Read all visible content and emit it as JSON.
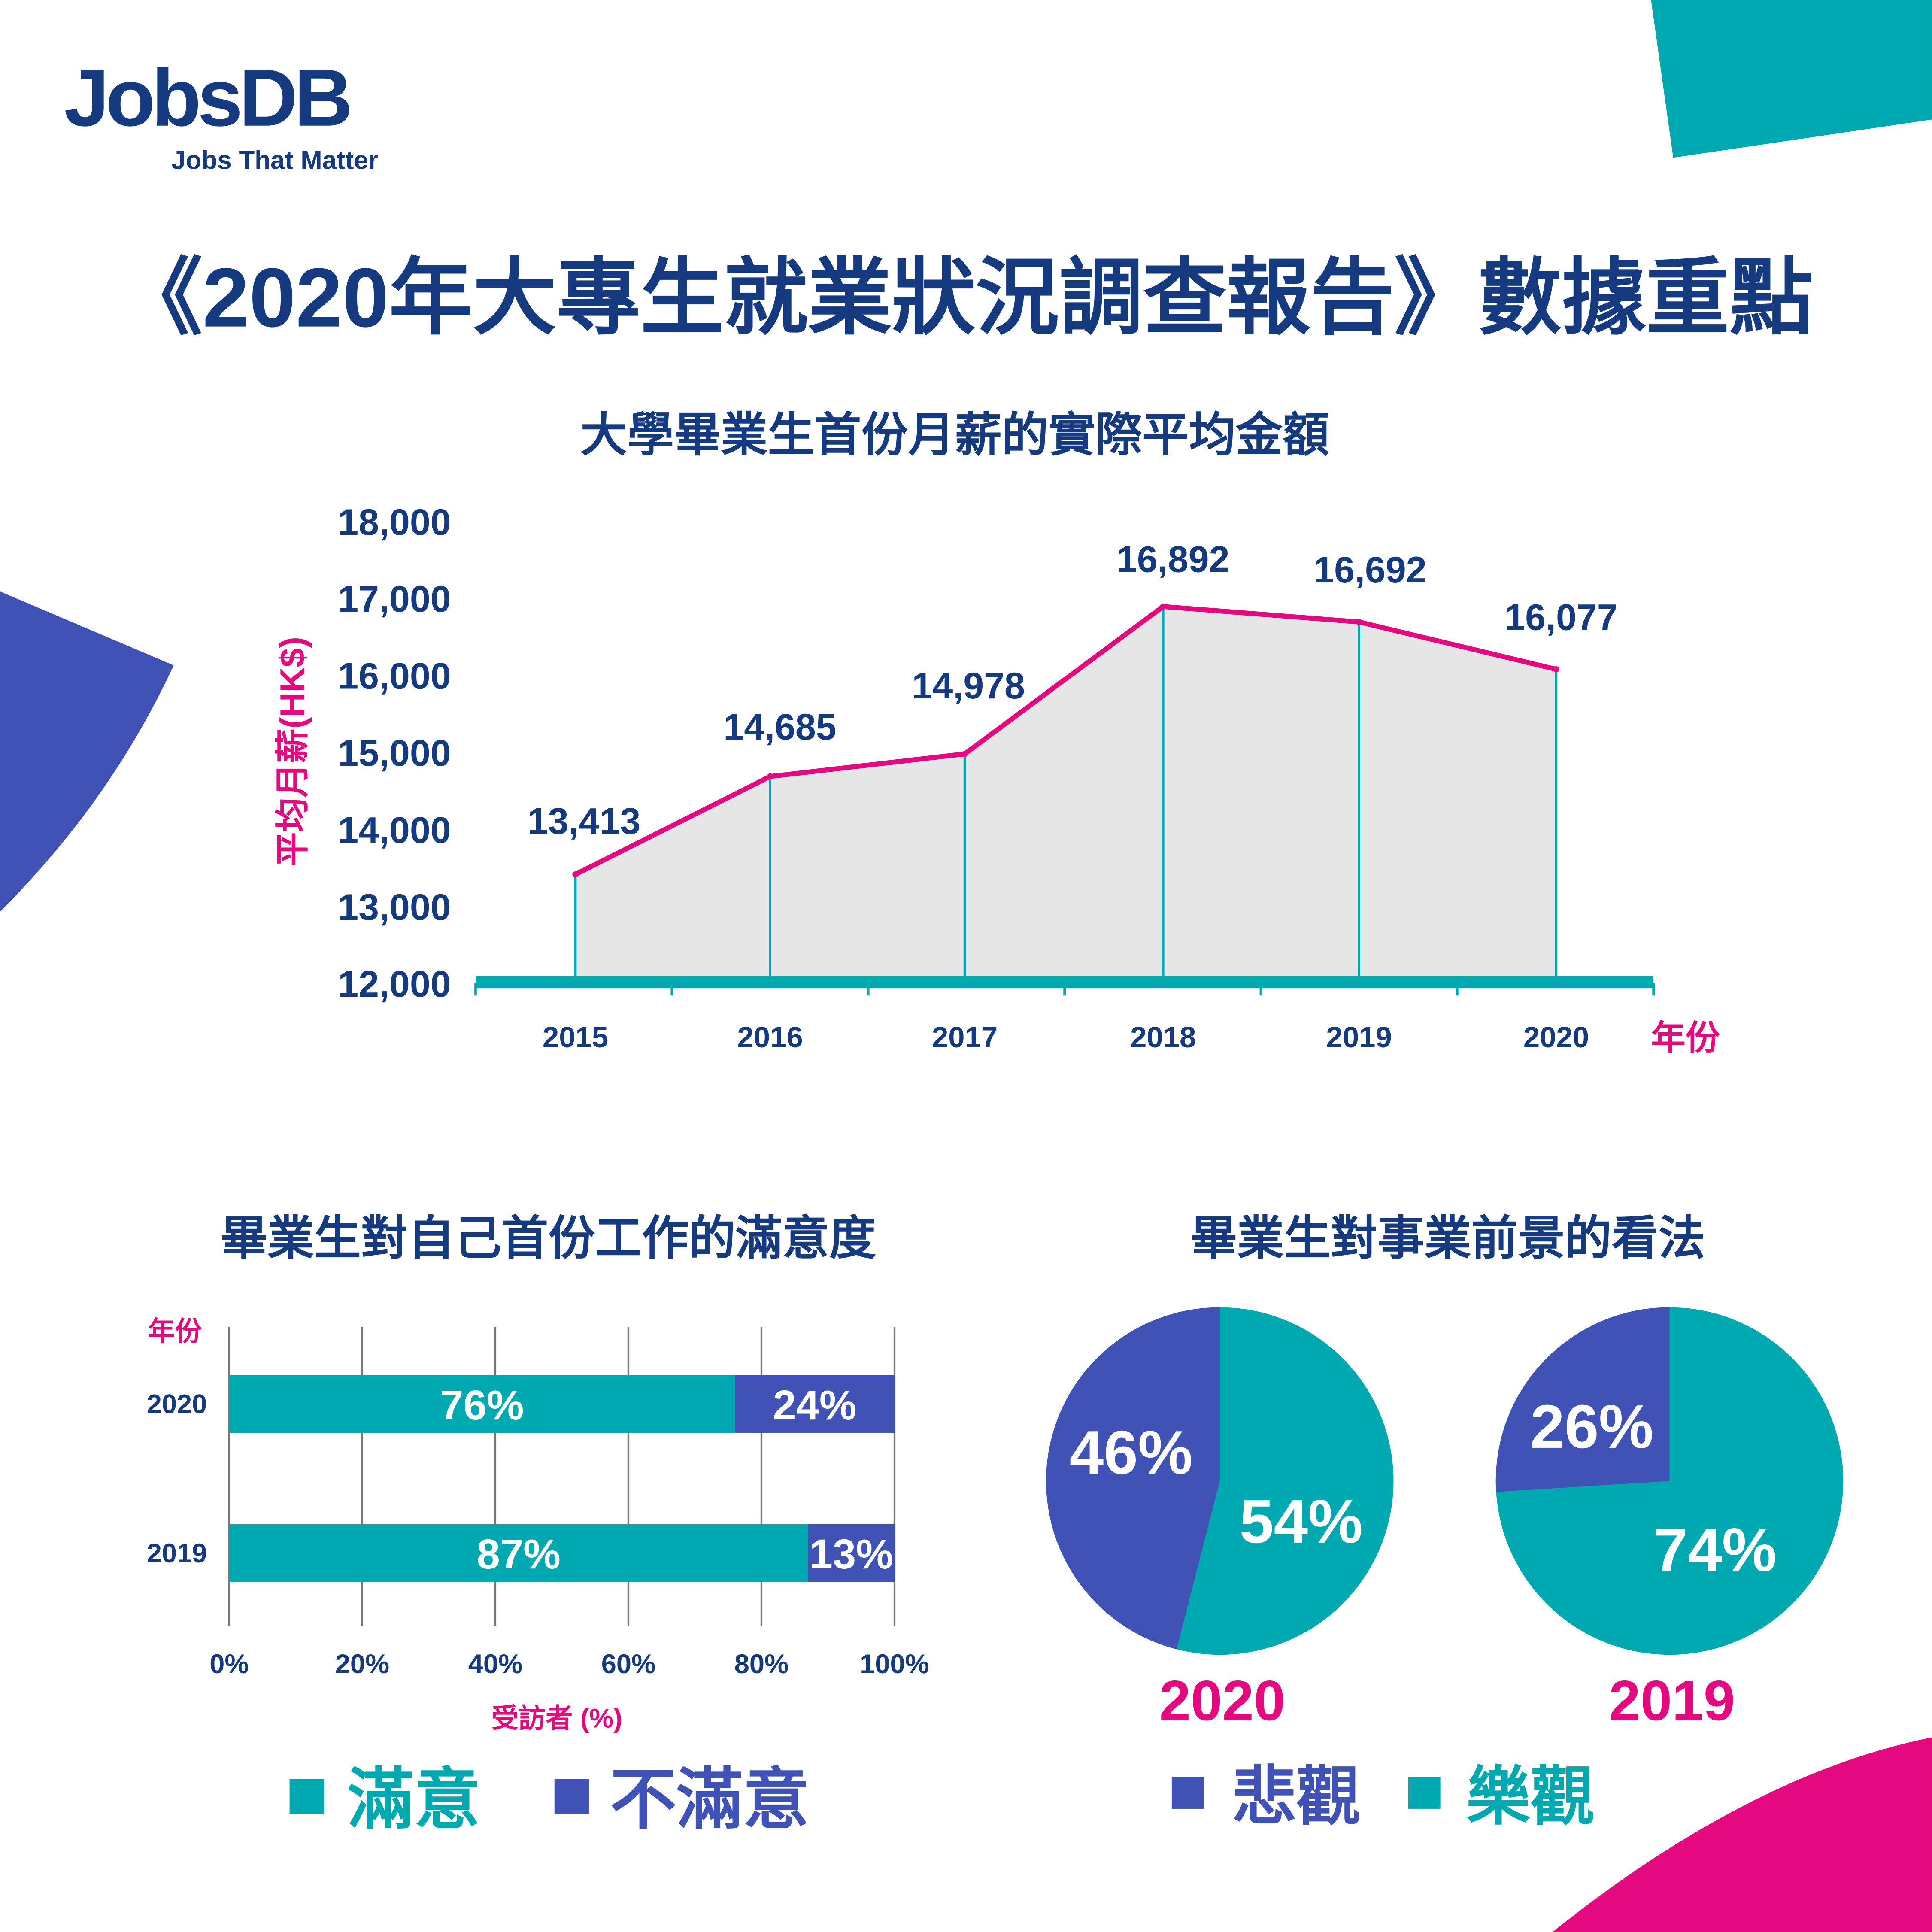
{
  "brand": {
    "logo": "JobsDB",
    "tagline": "Jobs That Matter"
  },
  "title": "《2020年大專生就業狀況調查報告》數據重點",
  "colors": {
    "navy": "#153a80",
    "teal": "#00a9b0",
    "purple": "#4052b5",
    "pink": "#e4097e",
    "fill": "#e6e6e6"
  },
  "chart_data": [
    {
      "type": "area",
      "title": "大學畢業生首份月薪的實際平均金額",
      "ylabel": "平均月薪(HK$)",
      "xlabel": "年份",
      "ylim": [
        12000,
        18000
      ],
      "yticks": [
        "12,000",
        "13,000",
        "14,000",
        "15,000",
        "16,000",
        "17,000",
        "18,000"
      ],
      "categories": [
        "2015",
        "2016",
        "2017",
        "2018",
        "2019",
        "2020"
      ],
      "values": [
        13413,
        14685,
        14978,
        16892,
        16692,
        16077
      ],
      "labels": [
        "13,413",
        "14,685",
        "14,978",
        "16,892",
        "16,692",
        "16,077"
      ]
    },
    {
      "type": "bar",
      "stacked": true,
      "orientation": "horizontal",
      "title": "畢業生對自己首份工作的滿意度",
      "ylabel": "年份",
      "xlabel": "受訪者 (%)",
      "xlim": [
        0,
        100
      ],
      "xticks": [
        "0%",
        "20%",
        "40%",
        "60%",
        "80%",
        "100%"
      ],
      "categories": [
        "2020",
        "2019"
      ],
      "series": [
        {
          "name": "滿意",
          "values": [
            76,
            87
          ],
          "labels": [
            "76%",
            "87%"
          ]
        },
        {
          "name": "不滿意",
          "values": [
            24,
            13
          ],
          "labels": [
            "24%",
            "13%"
          ]
        }
      ]
    },
    {
      "type": "pie",
      "title": "畢業生對事業前景的看法",
      "legend": [
        "悲觀",
        "樂觀"
      ],
      "pies": [
        {
          "year": "2020",
          "values": [
            46,
            54
          ],
          "labels": [
            "46%",
            "54%"
          ]
        },
        {
          "year": "2019",
          "values": [
            26,
            74
          ],
          "labels": [
            "26%",
            "74%"
          ]
        }
      ]
    }
  ]
}
